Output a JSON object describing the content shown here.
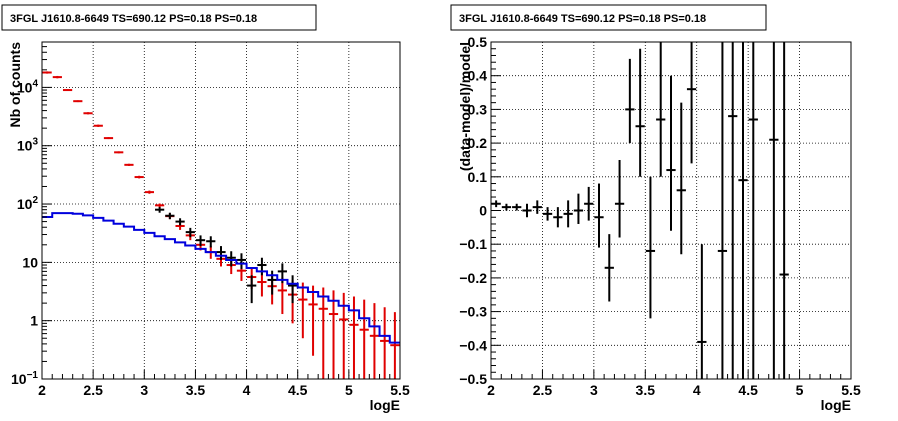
{
  "chart_data": [
    {
      "type": "scatter",
      "title": "3FGL J1610.8-6649 TS=690.12 PS=0.18 PS=0.18",
      "xlabel": "logE",
      "ylabel": "Nb of counts",
      "xlim": [
        2,
        5.5
      ],
      "ylim": [
        0.1,
        60000
      ],
      "yscale": "log",
      "grid": true,
      "x_ticks": [
        "2",
        "2.5",
        "3",
        "3.5",
        "4",
        "4.5",
        "5",
        "5.5"
      ],
      "y_ticks": [
        {
          "value": 0.1,
          "label": "10⁻¹",
          "base": "10",
          "exp": "−1"
        },
        {
          "value": 1,
          "label": "1",
          "base": "1",
          "exp": ""
        },
        {
          "value": 10,
          "label": "10",
          "base": "10",
          "exp": ""
        },
        {
          "value": 100,
          "label": "10²",
          "base": "10",
          "exp": "2"
        },
        {
          "value": 1000,
          "label": "10³",
          "base": "10",
          "exp": "3"
        },
        {
          "value": 10000,
          "label": "10⁴",
          "base": "10",
          "exp": "4"
        }
      ],
      "colors": {
        "model": "#e00000",
        "data": "#000000",
        "background": "#0000dd"
      },
      "series": [
        {
          "role": "model",
          "x": [
            2.05,
            2.15,
            2.25,
            2.35,
            2.45,
            2.55,
            2.65,
            2.75,
            2.85,
            2.95,
            3.05,
            3.15,
            3.25,
            3.35,
            3.45,
            3.55,
            3.65,
            3.75,
            3.85,
            3.95,
            4.05,
            4.15,
            4.25,
            4.35,
            4.45,
            4.55,
            4.65,
            4.75,
            4.85,
            4.95,
            5.05,
            5.15,
            5.25,
            5.35,
            5.45
          ],
          "y": [
            18000,
            15000,
            9000,
            5800,
            3600,
            2200,
            1350,
            770,
            470,
            290,
            160,
            95,
            62,
            42,
            29,
            20,
            15,
            11.5,
            9,
            7.2,
            5.6,
            4.6,
            3.9,
            3.3,
            2.8,
            2.3,
            1.9,
            1.6,
            1.3,
            1.05,
            0.85,
            0.7,
            0.55,
            0.45,
            0.38
          ],
          "err_lo": [
            17200,
            14300,
            8700,
            5600,
            3450,
            2100,
            1300,
            740,
            450,
            275,
            150,
            88,
            55,
            36,
            24,
            16,
            11.5,
            8.5,
            6.3,
            4.8,
            3.5,
            2.6,
            1.9,
            1.3,
            0.9,
            0.5,
            0.25,
            0.1,
            0.1,
            0.1,
            0.1,
            0.1,
            0.1,
            0.1,
            0.1
          ],
          "err_hi": [
            18800,
            15700,
            9300,
            6000,
            3750,
            2300,
            1400,
            800,
            490,
            305,
            170,
            102,
            69,
            48,
            34,
            24,
            19,
            15,
            12,
            10,
            8,
            7,
            6.2,
            5.5,
            5,
            4.5,
            4,
            3.7,
            3.3,
            3,
            2.6,
            2.3,
            2,
            1.7,
            1.4
          ]
        },
        {
          "role": "data",
          "x": [
            3.15,
            3.25,
            3.35,
            3.45,
            3.55,
            3.65,
            3.75,
            3.85,
            3.95,
            4.05,
            4.15,
            4.25,
            4.35,
            4.45
          ],
          "y": [
            80,
            63,
            50,
            33,
            24,
            23,
            15,
            12,
            11,
            4,
            9,
            5,
            7,
            4
          ],
          "err_lo": [
            71,
            55,
            43,
            27,
            19,
            18,
            11,
            8.5,
            7.7,
            2,
            6,
            2.8,
            4.4,
            2
          ],
          "err_hi": [
            89,
            71,
            57,
            39,
            29,
            28,
            19,
            15.5,
            14.3,
            6,
            12,
            7.2,
            9.6,
            6
          ]
        },
        {
          "role": "background",
          "step": true,
          "x": [
            2.0,
            2.1,
            2.2,
            2.3,
            2.4,
            2.5,
            2.6,
            2.7,
            2.8,
            2.9,
            3.0,
            3.1,
            3.2,
            3.3,
            3.4,
            3.5,
            3.6,
            3.7,
            3.8,
            3.9,
            4.0,
            4.1,
            4.2,
            4.3,
            4.4,
            4.5,
            4.6,
            4.7,
            4.8,
            4.9,
            5.0,
            5.1,
            5.2,
            5.3,
            5.4,
            5.5
          ],
          "y": [
            60,
            70,
            70,
            68,
            64,
            58,
            52,
            46,
            41,
            36,
            32,
            28,
            25,
            22,
            19.5,
            17,
            15,
            13,
            11,
            9.5,
            8,
            7,
            6,
            5,
            4.3,
            3.7,
            3.1,
            2.6,
            2.2,
            1.8,
            1.5,
            1.1,
            0.8,
            0.55,
            0.42,
            0.3
          ]
        }
      ]
    },
    {
      "type": "scatter",
      "title": "3FGL J1610.8-6649 TS=690.12 PS=0.18 PS=0.18",
      "xlabel": "logE",
      "ylabel": "(data-model)/model",
      "xlim": [
        2,
        5.5
      ],
      "ylim": [
        -0.5,
        0.5
      ],
      "grid": true,
      "x_ticks": [
        "2",
        "2.5",
        "3",
        "3.5",
        "4",
        "4.5",
        "5",
        "5.5"
      ],
      "y_ticks": [
        "−0.5",
        "−0.4",
        "−0.3",
        "−0.2",
        "−0.1",
        "0",
        "0.1",
        "0.2",
        "0.3",
        "0.4",
        "0.5"
      ],
      "series": [
        {
          "role": "residual",
          "x": [
            2.05,
            2.15,
            2.25,
            2.35,
            2.45,
            2.55,
            2.65,
            2.75,
            2.85,
            2.95,
            3.05,
            3.15,
            3.25,
            3.35,
            3.45,
            3.55,
            3.65,
            3.75,
            3.85,
            3.95,
            4.05,
            4.25,
            4.35,
            4.45,
            4.55,
            4.75,
            4.85
          ],
          "y": [
            0.02,
            0.01,
            0.01,
            0.0,
            0.01,
            -0.01,
            -0.02,
            -0.01,
            0.0,
            0.02,
            -0.02,
            -0.17,
            0.02,
            0.3,
            0.25,
            -0.12,
            0.27,
            0.12,
            0.06,
            0.36,
            -0.39,
            -0.12,
            0.28,
            0.09,
            0.27,
            0.21,
            -0.19
          ],
          "err_lo": [
            0.01,
            0.0,
            0.0,
            -0.02,
            -0.01,
            -0.03,
            -0.05,
            -0.05,
            -0.04,
            -0.03,
            -0.11,
            -0.27,
            -0.08,
            0.2,
            0.1,
            -0.32,
            0.1,
            -0.06,
            -0.13,
            0.14,
            -0.5,
            -0.5,
            -0.5,
            -0.5,
            -0.5,
            -0.5,
            -0.5
          ],
          "err_hi": [
            0.03,
            0.02,
            0.02,
            0.02,
            0.03,
            0.01,
            0.01,
            0.03,
            0.05,
            0.07,
            0.08,
            -0.07,
            0.15,
            0.45,
            0.48,
            0.1,
            0.5,
            0.4,
            0.32,
            0.5,
            -0.1,
            0.5,
            0.5,
            0.5,
            0.5,
            0.5,
            0.5
          ]
        }
      ]
    }
  ]
}
